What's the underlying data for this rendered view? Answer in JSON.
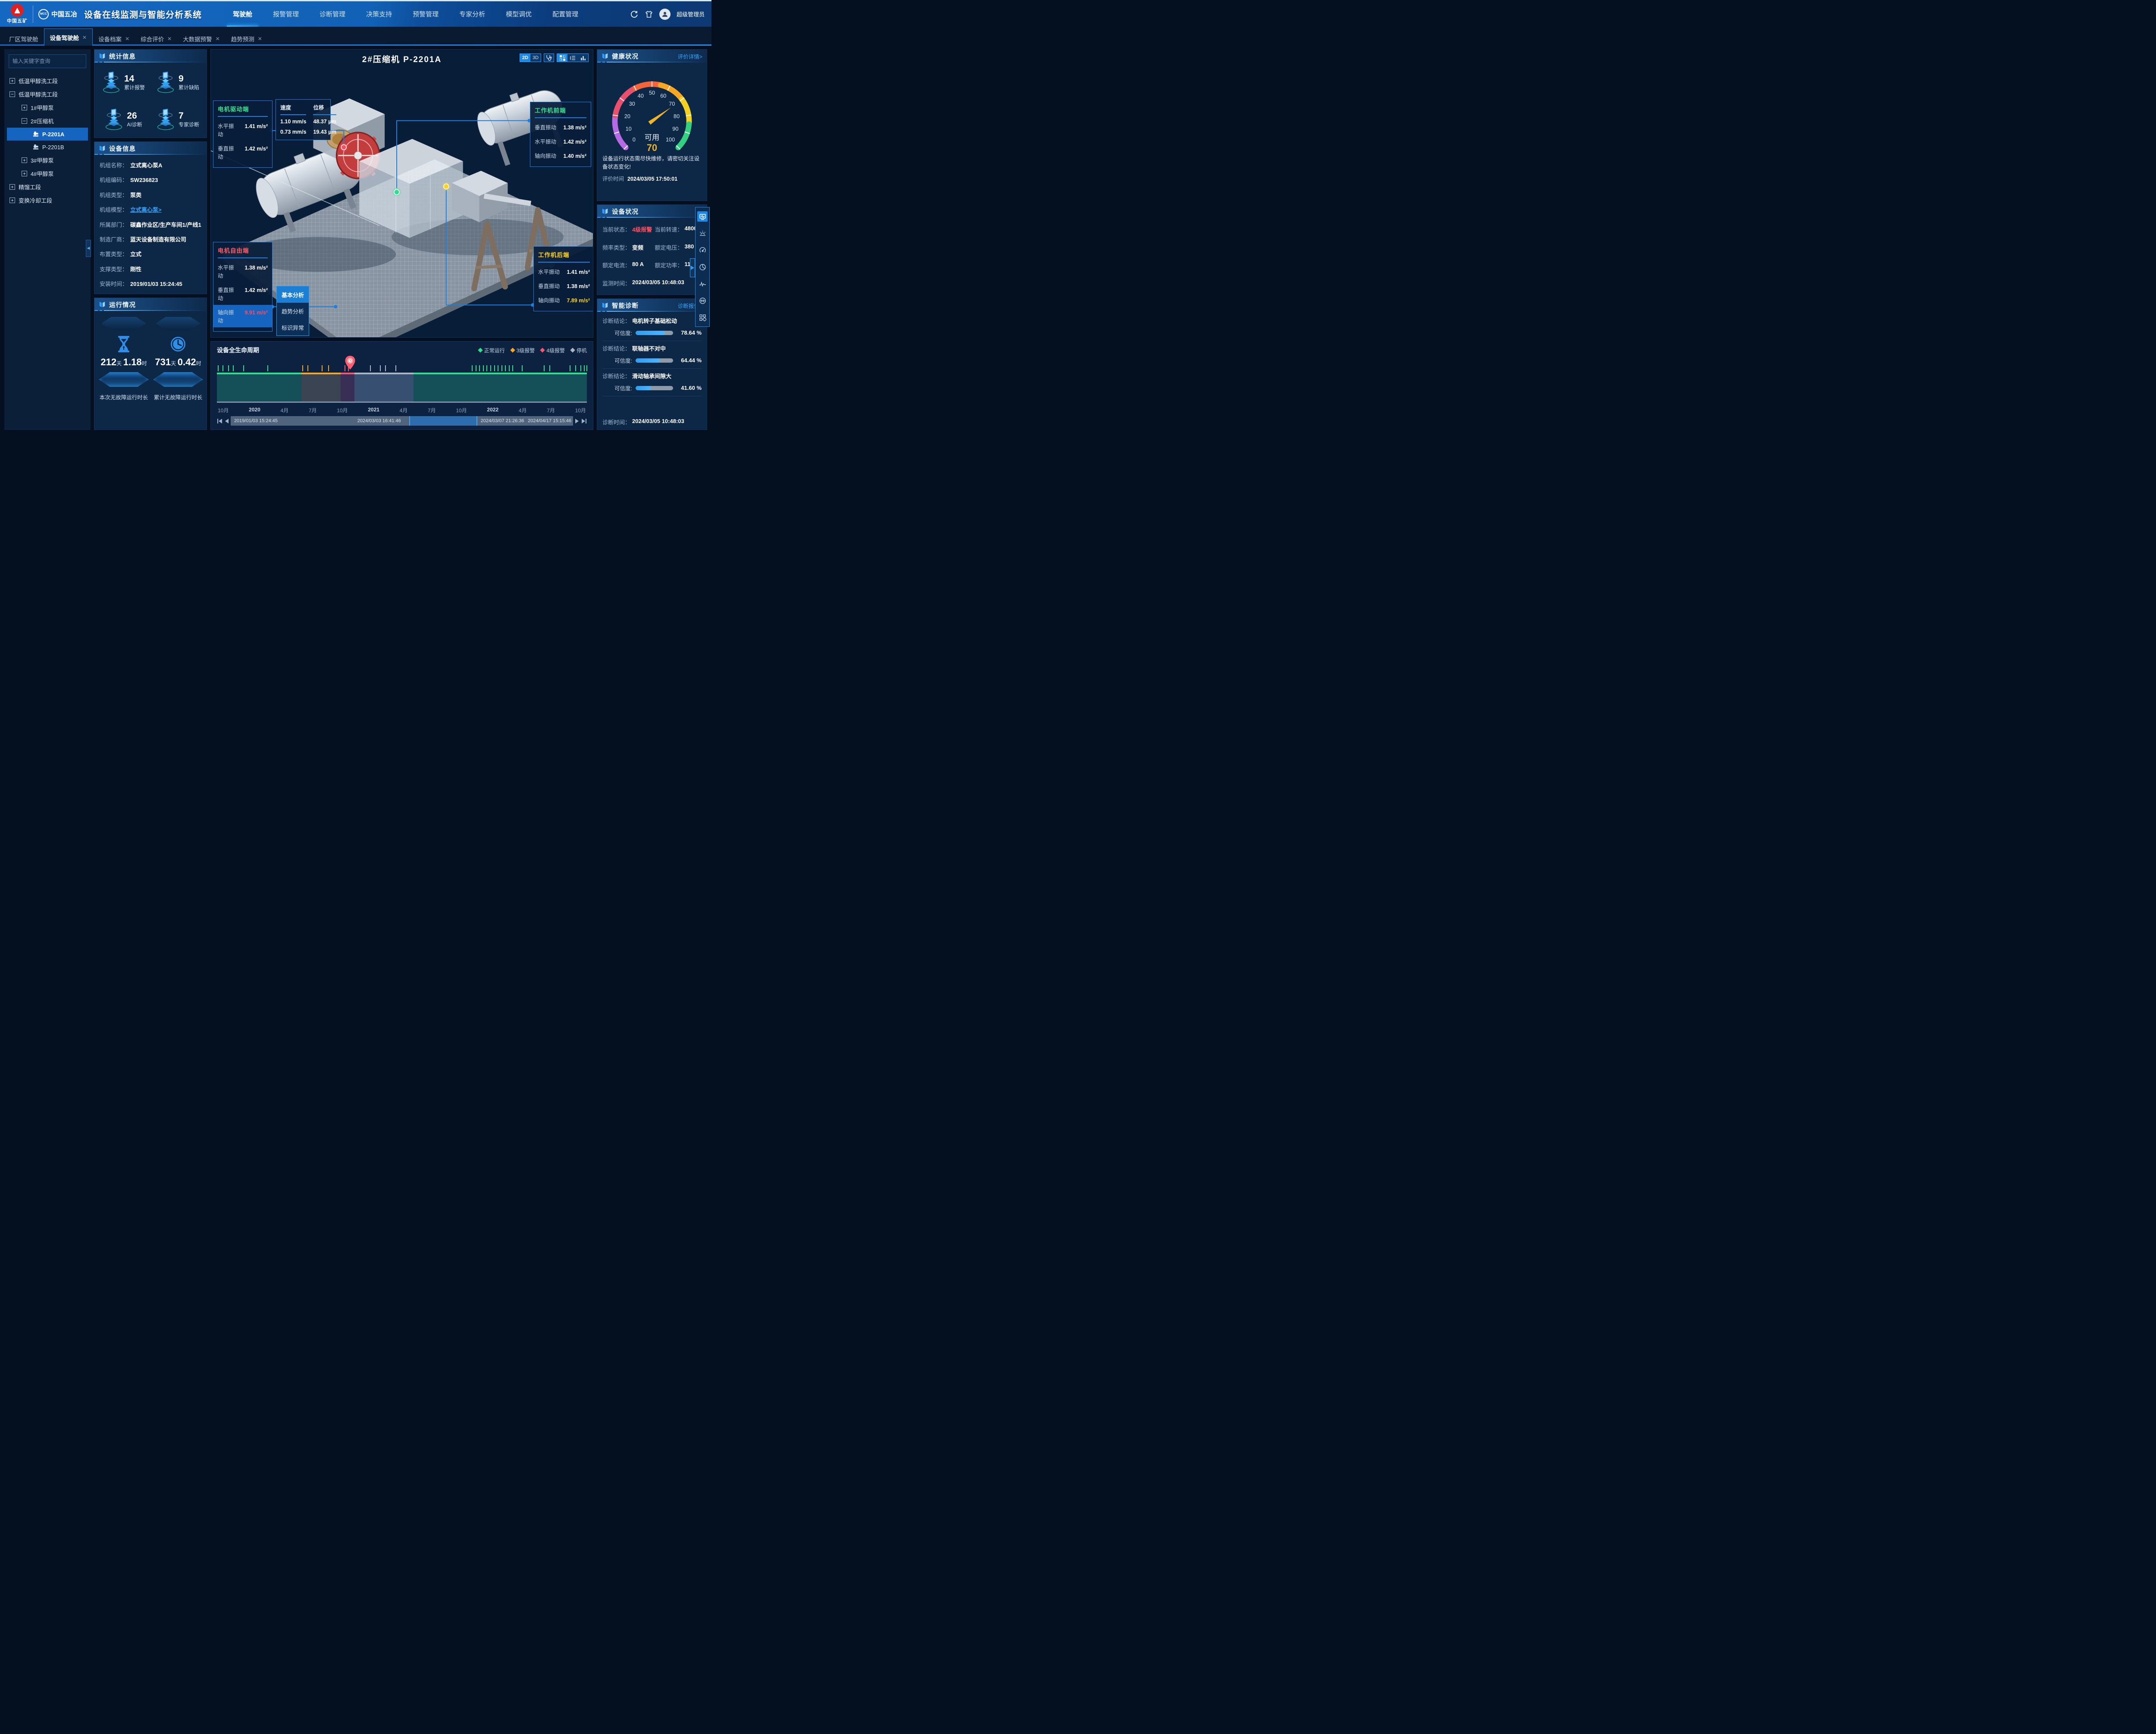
{
  "header": {
    "brand_primary": "中国五矿",
    "brand_secondary": "中国五冶",
    "app_title": "设备在线监测与智能分析系统",
    "menu": [
      {
        "label": "驾驶舱",
        "active": true
      },
      {
        "label": "报警管理"
      },
      {
        "label": "诊断管理"
      },
      {
        "label": "决策支持"
      },
      {
        "label": "预警管理"
      },
      {
        "label": "专家分析"
      },
      {
        "label": "模型调优"
      },
      {
        "label": "配置管理"
      }
    ],
    "user": "超级管理员"
  },
  "tabs": [
    {
      "label": "厂区驾驶舱",
      "closable": false
    },
    {
      "label": "设备驾驶舱",
      "closable": true,
      "active": true
    },
    {
      "label": "设备档案",
      "closable": true
    },
    {
      "label": "综合评价",
      "closable": true
    },
    {
      "label": "大数据预警",
      "closable": true
    },
    {
      "label": "趋势预测",
      "closable": true
    }
  ],
  "sidebar": {
    "search_placeholder": "输入关键字查询",
    "tree": {
      "n1": "低温甲醇洗工段",
      "n2": "低温甲醇洗工段",
      "n2_1": "1#甲醇泵",
      "n2_2": "2#压缩机",
      "n2_2_1": "P-2201A",
      "n2_2_2": "P-2201B",
      "n2_3": "3#甲醇泵",
      "n2_4": "4#甲醇泵",
      "n3": "精馏工段",
      "n4": "变换冷却工段"
    }
  },
  "stats": {
    "title": "统计信息",
    "items": [
      {
        "value": "14",
        "label": "累计报警"
      },
      {
        "value": "9",
        "label": "累计缺陷"
      },
      {
        "value": "26",
        "label": "AI诊断"
      },
      {
        "value": "7",
        "label": "专家诊断"
      }
    ]
  },
  "device_info": {
    "title": "设备信息",
    "rows": [
      {
        "label": "机组名称：",
        "value": "立式离心泵A"
      },
      {
        "label": "机组编码：",
        "value": "SW236823"
      },
      {
        "label": "机组类型：",
        "value": "泵类"
      },
      {
        "label": "机组模型：",
        "value": "立式离心泵>",
        "link": true
      },
      {
        "label": "所属部门：",
        "value": "碳鑫作业区/生产车间1/产线1"
      },
      {
        "label": "制造厂商：",
        "value": "蓝天设备制造有限公司"
      },
      {
        "label": "布置类型：",
        "value": "立式"
      },
      {
        "label": "支撑类型：",
        "value": "刚性"
      },
      {
        "label": "安装时间：",
        "value": "2019/01/03 15:24:45"
      }
    ]
  },
  "running": {
    "title": "运行情况",
    "cards": [
      {
        "icon": "hourglass",
        "days": "212",
        "days_unit": "天",
        "hours": "1.18",
        "hours_unit": "时",
        "label": "本次无故障运行时长"
      },
      {
        "icon": "clock",
        "days": "731",
        "days_unit": "天",
        "hours": "0.42",
        "hours_unit": "时",
        "label": "累计无故障运行时长"
      }
    ]
  },
  "viewer": {
    "title": "2#压缩机 P-2201A",
    "mode_2d": "2D",
    "mode_3d": "3D",
    "panels": {
      "drive_end": {
        "title": "电机驱动端",
        "rows": [
          {
            "label": "水平振动",
            "value": "1.41 m/s²"
          },
          {
            "label": "垂直振动",
            "value": "1.42 m/s²"
          }
        ]
      },
      "speed": {
        "col1": "速度",
        "col2": "位移",
        "rows": [
          [
            "1.10 mm/s",
            "48.37 μm"
          ],
          [
            "0.73 mm/s",
            "19.43 μm"
          ]
        ]
      },
      "front_end": {
        "title": "工作机前端",
        "rows": [
          {
            "label": "垂直振动",
            "value": "1.38 m/s²"
          },
          {
            "label": "水平振动",
            "value": "1.42 m/s²"
          },
          {
            "label": "轴向振动",
            "value": "1.40 m/s²"
          }
        ]
      },
      "free_end": {
        "title": "电机自由端",
        "rows": [
          {
            "label": "水平振动",
            "value": "1.38 m/s²"
          },
          {
            "label": "垂直振动",
            "value": "1.42 m/s²"
          },
          {
            "label": "轴向振动",
            "value": "9.91 m/s²",
            "alert": true
          }
        ]
      },
      "rear_end": {
        "title": "工作机后端",
        "rows": [
          {
            "label": "水平振动",
            "value": "1.41 m/s²"
          },
          {
            "label": "垂直振动",
            "value": "1.38 m/s²"
          },
          {
            "label": "轴向振动",
            "value": "7.89 m/s²",
            "warn": true
          }
        ]
      }
    },
    "context_menu": [
      "基本分析",
      "趋势分析",
      "标识异常"
    ]
  },
  "lifecycle": {
    "title": "设备全生命周期",
    "legend": [
      {
        "label": "正常运行",
        "status": "normal"
      },
      {
        "label": "3级报警",
        "status": "warn3"
      },
      {
        "label": "4级报警",
        "status": "warn4"
      },
      {
        "label": "停机",
        "status": "stop"
      }
    ],
    "colors": {
      "normal": "#2ee08a",
      "warn3": "#f5a623",
      "warn4": "#f7566e",
      "stop": "#aab6c4"
    },
    "area_colors": {
      "normal": "rgba(30,125,112,0.50)",
      "warn3": "rgba(96,96,96,0.55)",
      "warn4": "rgba(114,62,112,0.45)",
      "stop": "rgba(98,124,160,0.50)"
    },
    "segments": [
      {
        "status": "normal",
        "start": 0,
        "end": 22.8
      },
      {
        "status": "warn3",
        "start": 22.8,
        "end": 33.5
      },
      {
        "status": "warn4",
        "start": 33.5,
        "end": 37.2
      },
      {
        "status": "stop",
        "start": 37.2,
        "end": 53.2
      },
      {
        "status": "normal",
        "start": 53.2,
        "end": 100
      }
    ],
    "ticks": [
      {
        "p": 0.4,
        "s": "normal"
      },
      {
        "p": 1.6,
        "s": "normal"
      },
      {
        "p": 3.2,
        "s": "normal"
      },
      {
        "p": 4.4,
        "s": "normal"
      },
      {
        "p": 7.2,
        "s": "normal"
      },
      {
        "p": 13.8,
        "s": "normal"
      },
      {
        "p": 23.2,
        "s": "warn3"
      },
      {
        "p": 24.6,
        "s": "warn3"
      },
      {
        "p": 28.4,
        "s": "warn3"
      },
      {
        "p": 30.2,
        "s": "warn3"
      },
      {
        "p": 34.6,
        "s": "warn4"
      },
      {
        "p": 35.6,
        "s": "warn4"
      },
      {
        "p": 41.5,
        "s": "stop"
      },
      {
        "p": 44.2,
        "s": "stop"
      },
      {
        "p": 45.6,
        "s": "stop"
      },
      {
        "p": 48.4,
        "s": "stop"
      },
      {
        "p": 69,
        "s": "normal"
      },
      {
        "p": 70,
        "s": "normal"
      },
      {
        "p": 71,
        "s": "normal"
      },
      {
        "p": 72,
        "s": "normal"
      },
      {
        "p": 73,
        "s": "normal"
      },
      {
        "p": 74,
        "s": "normal"
      },
      {
        "p": 75,
        "s": "normal"
      },
      {
        "p": 76,
        "s": "normal"
      },
      {
        "p": 77,
        "s": "normal"
      },
      {
        "p": 78,
        "s": "normal"
      },
      {
        "p": 79,
        "s": "normal"
      },
      {
        "p": 80,
        "s": "normal"
      },
      {
        "p": 82.5,
        "s": "normal"
      },
      {
        "p": 88.5,
        "s": "normal"
      },
      {
        "p": 90,
        "s": "normal"
      },
      {
        "p": 95.5,
        "s": "normal"
      },
      {
        "p": 97,
        "s": "normal"
      },
      {
        "p": 98.4,
        "s": "normal"
      },
      {
        "p": 99.3,
        "s": "normal"
      },
      {
        "p": 100,
        "s": "normal"
      }
    ],
    "marker_pct": 36,
    "axis_labels": [
      "10月",
      "2020",
      "4月",
      "7月",
      "10月",
      "2021",
      "4月",
      "7月",
      "10月",
      "2022",
      "4月",
      "7月",
      "10月"
    ],
    "scrollbar": {
      "range_start": "2019/01/03 15:24:45",
      "sel_start": "2024/03/03 16:41:46",
      "sel_end": "2024/03/07 21:26:36",
      "range_end": "2024/04/17 15:15:46",
      "selection": [
        52.2,
        72.0
      ]
    }
  },
  "health": {
    "title": "健康状况",
    "link": "评价详情>",
    "gauge": {
      "value": "70",
      "status": "可用",
      "ticks": [
        "0",
        "10",
        "20",
        "30",
        "40",
        "50",
        "60",
        "70",
        "80",
        "90",
        "100"
      ]
    },
    "warning": "设备运行状态需尽快维修，请密切关注设备状态变化!",
    "eval_time_label": "评价时间",
    "eval_time": "2024/03/05 17:50:01"
  },
  "device_status": {
    "title": "设备状况",
    "rows": [
      {
        "label": "当前状态：",
        "value": "4级报警",
        "alert": true
      },
      {
        "label": "当前转速：",
        "value": "4800 r/min"
      },
      {
        "label": "频率类型：",
        "value": "变频"
      },
      {
        "label": "额定电压：",
        "value": "380 V"
      },
      {
        "label": "额定电流：",
        "value": "80 A"
      },
      {
        "label": "额定功率：",
        "value": "110 kW"
      },
      {
        "label": "监测时间：",
        "value": "2024/03/05 10:48:03",
        "full": true
      }
    ]
  },
  "diagnosis": {
    "title": "智能诊断",
    "link": "诊断报告>",
    "conclusion_label": "诊断结论：",
    "confidence_label": "可信度:",
    "items": [
      {
        "conclusion": "电机转子基础松动",
        "confidence": 78.64,
        "confidence_text": "78.64 %"
      },
      {
        "conclusion": "联轴器不对中",
        "confidence": 64.44,
        "confidence_text": "64.44 %"
      },
      {
        "conclusion": "滑动轴承间隙大",
        "confidence": 41.6,
        "confidence_text": "41.60 %"
      }
    ],
    "time_label": "诊断时间：",
    "time": "2024/03/05 10:48:03"
  },
  "chart_data": [
    {
      "type": "gauge",
      "title": "健康状况",
      "value": 70,
      "label": "可用",
      "range": [
        0,
        100
      ],
      "tick_step": 10,
      "color_stops": [
        "#b36ae2",
        "#e8506e",
        "#f4633a",
        "#f6a623",
        "#f2d024",
        "#35d07f"
      ]
    },
    {
      "type": "timeline",
      "title": "设备全生命周期",
      "legend": [
        "正常运行",
        "3级报警",
        "4级报警",
        "停机"
      ],
      "x_ticks": [
        "10月",
        "2020",
        "4月",
        "7月",
        "10月",
        "2021",
        "4月",
        "7月",
        "10月",
        "2022",
        "4月",
        "7月",
        "10月"
      ],
      "segments_pct": [
        [
          0,
          22.8,
          "正常运行"
        ],
        [
          22.8,
          33.5,
          "3级报警"
        ],
        [
          33.5,
          37.2,
          "4级报警"
        ],
        [
          37.2,
          53.2,
          "停机"
        ],
        [
          53.2,
          100,
          "正常运行"
        ]
      ],
      "marker_pct": 36,
      "window": [
        "2019/01/03 15:24:45",
        "2024/03/03 16:41:46",
        "2024/03/07 21:26:36",
        "2024/04/17 15:15:46"
      ]
    }
  ]
}
